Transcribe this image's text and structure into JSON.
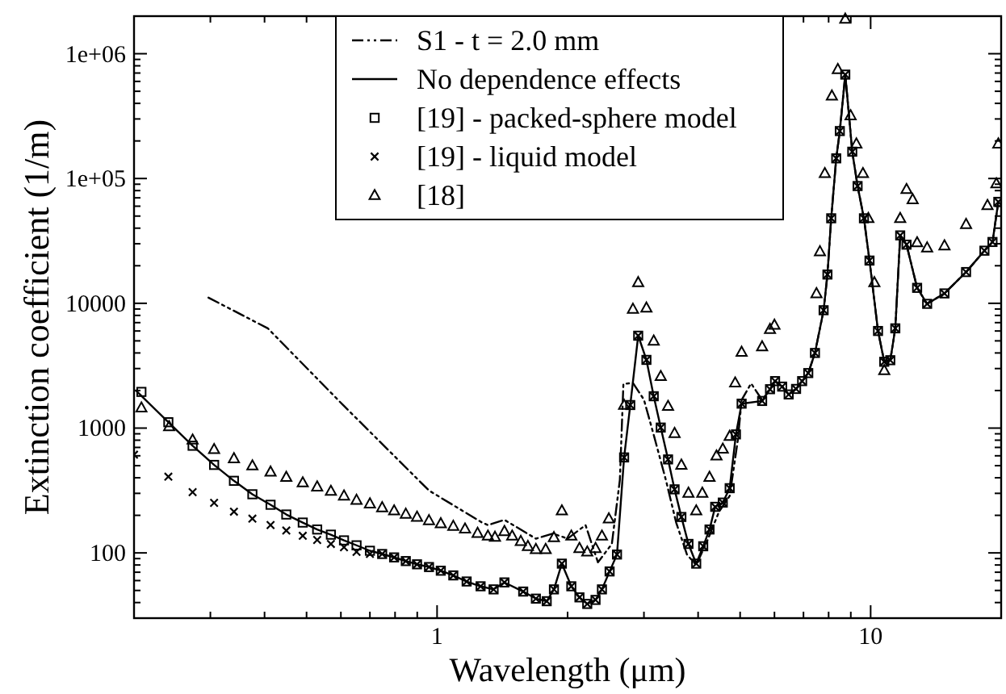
{
  "chart_data": {
    "type": "line",
    "xlabel": "Wavelength (μm)",
    "ylabel": "Extinction coefficient (1/m)",
    "log": "xy",
    "legend": "top",
    "xlim": [
      0.2,
      20
    ],
    "ylim": [
      30,
      2000000
    ],
    "xticks": [
      {
        "value": 0.3,
        "label": null
      },
      {
        "value": 0.4,
        "label": null
      },
      {
        "value": 0.5,
        "label": null
      },
      {
        "value": 0.6,
        "label": null
      },
      {
        "value": 0.7,
        "label": null
      },
      {
        "value": 0.8,
        "label": null
      },
      {
        "value": 0.9,
        "label": null
      },
      1,
      {
        "value": 2,
        "label": null
      },
      {
        "value": 3,
        "label": null
      },
      {
        "value": 4,
        "label": null
      },
      {
        "value": 5,
        "label": null
      },
      {
        "value": 6,
        "label": null
      },
      {
        "value": 7,
        "label": null
      },
      {
        "value": 8,
        "label": null
      },
      {
        "value": 9,
        "label": null
      },
      10
    ],
    "yticks": [
      {
        "value": 40,
        "label": null
      },
      {
        "value": 50,
        "label": null
      },
      {
        "value": 60,
        "label": null
      },
      {
        "value": 70,
        "label": null
      },
      {
        "value": 80,
        "label": null
      },
      {
        "value": 90,
        "label": null
      },
      100,
      {
        "value": 200,
        "label": null
      },
      {
        "value": 300,
        "label": null
      },
      {
        "value": 400,
        "label": null
      },
      {
        "value": 500,
        "label": null
      },
      {
        "value": 600,
        "label": null
      },
      {
        "value": 700,
        "label": null
      },
      {
        "value": 800,
        "label": null
      },
      {
        "value": 900,
        "label": null
      },
      1000,
      {
        "value": 2000,
        "label": null
      },
      {
        "value": 3000,
        "label": null
      },
      {
        "value": 4000,
        "label": null
      },
      {
        "value": 5000,
        "label": null
      },
      {
        "value": 6000,
        "label": null
      },
      {
        "value": 7000,
        "label": null
      },
      {
        "value": 8000,
        "label": null
      },
      {
        "value": 9000,
        "label": null
      },
      10000,
      {
        "value": 20000,
        "label": null
      },
      {
        "value": 30000,
        "label": null
      },
      {
        "value": 40000,
        "label": null
      },
      {
        "value": 50000,
        "label": null
      },
      {
        "value": 60000,
        "label": null
      },
      {
        "value": 70000,
        "label": null
      },
      {
        "value": 80000,
        "label": null
      },
      {
        "value": 90000,
        "label": null
      },
      {
        "value": 100000,
        "label": "1e+05"
      },
      {
        "value": 200000,
        "label": null
      },
      {
        "value": 300000,
        "label": null
      },
      {
        "value": 400000,
        "label": null
      },
      {
        "value": 500000,
        "label": null
      },
      {
        "value": 600000,
        "label": null
      },
      {
        "value": 700000,
        "label": null
      },
      {
        "value": 800000,
        "label": null
      },
      {
        "value": 900000,
        "label": null
      },
      {
        "value": 1000000,
        "label": "1e+06"
      }
    ],
    "series": [
      {
        "name": "S1 - t = 2.0 mm",
        "color": "#000000",
        "line_style": "dashed",
        "marker": "none",
        "x": [
          0.297,
          0.407,
          0.607,
          0.958,
          1.27,
          1.31,
          1.43,
          1.69,
          1.85,
          2.0,
          2.2,
          2.35,
          2.53,
          2.64,
          2.69,
          2.83,
          3.0,
          3.17,
          3.37,
          3.56,
          3.77,
          3.96,
          4.22,
          4.47,
          4.73,
          4.94,
          5.04,
          5.3,
          5.62,
          5.86,
          6.02,
          6.25,
          6.47,
          6.73,
          6.95,
          7.18,
          7.44,
          7.79,
          7.95,
          8.11,
          8.33,
          8.49,
          8.74,
          9.07,
          9.33,
          9.65,
          9.94,
          10.4,
          10.75,
          11.1,
          11.4,
          11.7,
          12.1,
          12.8,
          13.5,
          14.8,
          16.6,
          18.3,
          19.1,
          19.7
        ],
        "values": [
          11100,
          6300,
          1530,
          316,
          175,
          167,
          184,
          130,
          143,
          130,
          167,
          84,
          118,
          385,
          2260,
          2300,
          1690,
          847,
          385,
          175,
          97,
          80,
          130,
          214,
          286,
          805,
          1680,
          2280,
          1680,
          2050,
          2380,
          2150,
          1860,
          2060,
          2380,
          2760,
          4000,
          8800,
          17000,
          48000,
          145000,
          240000,
          680000,
          164000,
          87000,
          48000,
          22000,
          6000,
          3400,
          3500,
          6300,
          35000,
          29500,
          13300,
          9900,
          12000,
          17800,
          26400,
          31000,
          65000
        ]
      },
      {
        "name": "No dependence effects",
        "color": "#000000",
        "line_style": "solid",
        "marker": "none",
        "x": [
          0.202,
          0.24,
          0.273,
          0.306,
          0.34,
          0.375,
          0.413,
          0.449,
          0.49,
          0.529,
          0.569,
          0.61,
          0.652,
          0.7,
          0.747,
          0.796,
          0.847,
          0.899,
          0.958,
          1.02,
          1.09,
          1.17,
          1.26,
          1.35,
          1.43,
          1.58,
          1.69,
          1.79,
          1.86,
          1.94,
          2.04,
          2.13,
          2.22,
          2.32,
          2.4,
          2.5,
          2.6,
          2.7,
          2.79,
          2.91,
          3.04,
          3.16,
          3.28,
          3.41,
          3.53,
          3.66,
          3.8,
          3.96,
          4.11,
          4.25,
          4.38,
          4.56,
          4.73,
          4.89,
          5.04,
          5.62,
          5.86,
          6.02,
          6.25,
          6.47,
          6.73,
          6.95,
          7.18,
          7.44,
          7.79,
          7.95,
          8.11,
          8.33,
          8.49,
          8.74,
          9.07,
          9.33,
          9.65,
          9.94,
          10.4,
          10.75,
          11.1,
          11.4,
          11.7,
          12.1,
          12.8,
          13.5,
          14.8,
          16.6,
          18.3,
          19.1,
          19.7
        ],
        "values": [
          2000,
          1115,
          722,
          507,
          378,
          295,
          243,
          203,
          175,
          154,
          140,
          126,
          115,
          104,
          98,
          92,
          86,
          81,
          77,
          72,
          66,
          59,
          54,
          51,
          58,
          49,
          43,
          41,
          51,
          82,
          54,
          44,
          39,
          42,
          51,
          71,
          97,
          582,
          1530,
          5500,
          3520,
          1800,
          1010,
          561,
          323,
          194,
          118,
          82,
          113,
          154,
          234,
          253,
          330,
          890,
          1570,
          1650,
          2050,
          2380,
          2150,
          1860,
          2060,
          2380,
          2760,
          4000,
          8800,
          17000,
          48000,
          145000,
          240000,
          680000,
          164000,
          87000,
          48000,
          22000,
          6000,
          3400,
          3500,
          6300,
          35000,
          29500,
          13300,
          9900,
          12000,
          17800,
          26400,
          31000,
          65000
        ]
      },
      {
        "name": "[19] - packed-sphere model",
        "type": "scatter",
        "color": "#000000",
        "marker": "square",
        "x": [
          0.208,
          0.24,
          0.273,
          0.306,
          0.34,
          0.375,
          0.413,
          0.449,
          0.49,
          0.529,
          0.569,
          0.61,
          0.652,
          0.7,
          0.747,
          0.796,
          0.847,
          0.899,
          0.958,
          1.02,
          1.09,
          1.17,
          1.26,
          1.35,
          1.43,
          1.58,
          1.69,
          1.79,
          1.86,
          1.94,
          2.04,
          2.13,
          2.22,
          2.32,
          2.4,
          2.5,
          2.6,
          2.7,
          2.79,
          2.91,
          3.04,
          3.16,
          3.28,
          3.41,
          3.53,
          3.66,
          3.8,
          3.96,
          4.11,
          4.25,
          4.38,
          4.56,
          4.73,
          4.89,
          5.04,
          5.62,
          5.86,
          6.02,
          6.25,
          6.47,
          6.73,
          6.95,
          7.18,
          7.44,
          7.79,
          7.95,
          8.11,
          8.33,
          8.49,
          8.74,
          9.07,
          9.33,
          9.65,
          9.94,
          10.4,
          10.75,
          11.1,
          11.4,
          11.7,
          12.1,
          12.8,
          13.5,
          14.8,
          16.6,
          18.3,
          19.1,
          19.7
        ],
        "values": [
          1950,
          1115,
          722,
          507,
          378,
          295,
          243,
          203,
          175,
          154,
          140,
          126,
          115,
          104,
          98,
          92,
          86,
          81,
          77,
          72,
          66,
          59,
          54,
          51,
          58,
          49,
          43,
          41,
          51,
          82,
          54,
          44,
          39,
          42,
          51,
          71,
          97,
          582,
          1530,
          5500,
          3520,
          1800,
          1010,
          561,
          323,
          194,
          118,
          82,
          113,
          154,
          234,
          253,
          330,
          890,
          1570,
          1650,
          2050,
          2380,
          2150,
          1860,
          2060,
          2380,
          2760,
          4000,
          8800,
          17000,
          48000,
          145000,
          240000,
          680000,
          164000,
          87000,
          48000,
          22000,
          6000,
          3400,
          3500,
          6300,
          35000,
          29500,
          13300,
          9900,
          12000,
          17800,
          26400,
          31000,
          65000
        ]
      },
      {
        "name": "[19] - liquid model",
        "type": "scatter",
        "color": "#000000",
        "marker": "cross",
        "x": [
          0.2,
          0.24,
          0.273,
          0.306,
          0.34,
          0.375,
          0.413,
          0.449,
          0.49,
          0.529,
          0.569,
          0.61,
          0.652,
          0.7,
          0.747,
          0.796,
          0.847,
          0.899,
          0.958,
          1.02,
          1.09,
          1.17,
          1.26,
          1.35,
          1.43,
          1.58,
          1.69,
          1.79,
          1.86,
          1.94,
          2.04,
          2.13,
          2.22,
          2.32,
          2.4,
          2.5,
          2.6,
          2.7,
          2.79,
          2.91,
          3.04,
          3.16,
          3.28,
          3.41,
          3.53,
          3.66,
          3.8,
          3.96,
          4.11,
          4.25,
          4.38,
          4.56,
          4.73,
          4.89,
          5.04,
          5.62,
          5.86,
          6.02,
          6.25,
          6.47,
          6.73,
          6.95,
          7.18,
          7.44,
          7.79,
          7.95,
          8.11,
          8.33,
          8.49,
          8.74,
          9.07,
          9.33,
          9.65,
          9.94,
          10.4,
          10.75,
          11.1,
          11.4,
          11.7,
          12.1,
          12.8,
          13.5,
          14.8,
          16.6,
          18.3,
          19.1,
          19.7
        ],
        "values": [
          612,
          408,
          307,
          252,
          214,
          188,
          167,
          151,
          137,
          127,
          118,
          111,
          102,
          98,
          98,
          92,
          86,
          81,
          77,
          72,
          66,
          59,
          54,
          51,
          58,
          49,
          43,
          41,
          51,
          82,
          54,
          44,
          39,
          42,
          51,
          71,
          97,
          582,
          1530,
          5500,
          3520,
          1800,
          1010,
          561,
          323,
          194,
          118,
          82,
          113,
          154,
          234,
          253,
          330,
          890,
          1570,
          1650,
          2050,
          2380,
          2150,
          1860,
          2060,
          2380,
          2760,
          4000,
          8800,
          17000,
          48000,
          145000,
          240000,
          680000,
          164000,
          87000,
          48000,
          22000,
          6000,
          3400,
          3500,
          6300,
          35000,
          29500,
          13300,
          9900,
          12000,
          17800,
          26400,
          31000,
          65000
        ]
      },
      {
        "name": "[18]",
        "type": "scatter",
        "color": "#000000",
        "marker": "triangle",
        "x": [
          0.208,
          0.241,
          0.273,
          0.306,
          0.34,
          0.375,
          0.413,
          0.449,
          0.49,
          0.529,
          0.569,
          0.61,
          0.652,
          0.7,
          0.747,
          0.796,
          0.847,
          0.899,
          0.958,
          1.02,
          1.09,
          1.16,
          1.24,
          1.31,
          1.36,
          1.43,
          1.49,
          1.56,
          1.62,
          1.69,
          1.78,
          1.86,
          1.94,
          2.04,
          2.13,
          2.22,
          2.32,
          2.4,
          2.49,
          2.7,
          2.83,
          2.91,
          3.04,
          3.16,
          3.28,
          3.41,
          3.53,
          3.66,
          3.8,
          3.96,
          4.09,
          4.25,
          4.41,
          4.56,
          4.73,
          4.87,
          5.04,
          5.62,
          5.86,
          6.0,
          7.5,
          7.64,
          7.84,
          8.14,
          8.4,
          8.74,
          8.99,
          9.27,
          9.6,
          9.88,
          10.2,
          10.75,
          11.7,
          12.1,
          12.5,
          12.8,
          13.5,
          14.8,
          16.6,
          18.6,
          19.5,
          19.7
        ],
        "values": [
          1455,
          1030,
          805,
          676,
          571,
          500,
          446,
          405,
          366,
          339,
          313,
          287,
          265,
          248,
          231,
          218,
          205,
          194,
          182,
          172,
          164,
          156,
          144,
          137,
          134,
          149,
          137,
          124,
          113,
          107,
          107,
          133,
          218,
          137,
          109,
          102,
          109,
          137,
          188,
          1530,
          9000,
          14700,
          9200,
          5000,
          2600,
          1500,
          910,
          507,
          302,
          218,
          302,
          405,
          600,
          681,
          862,
          2310,
          4070,
          4500,
          6200,
          6700,
          12000,
          26000,
          110000,
          460000,
          750000,
          1900000,
          320000,
          190000,
          110000,
          48000,
          14700,
          2900,
          48000,
          82000,
          68000,
          30700,
          27900,
          29000,
          43000,
          61000,
          91000,
          190000
        ]
      }
    ]
  }
}
